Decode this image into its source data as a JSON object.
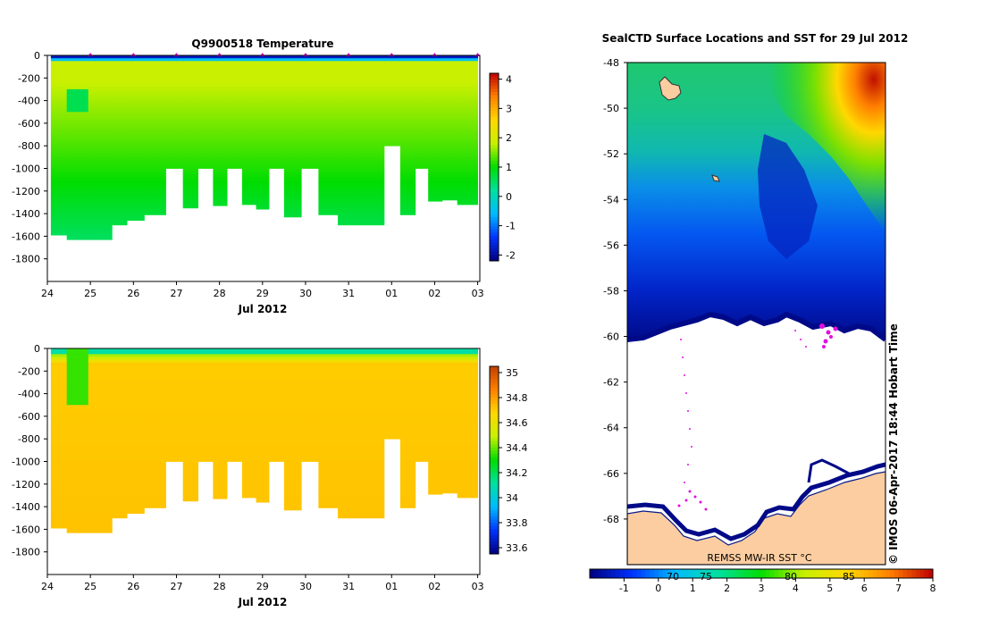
{
  "chart_data": [
    {
      "type": "heatmap",
      "title": "Q9900518  Temperature",
      "xlabel": "Jul 2012",
      "x_tick_labels": [
        "24",
        "25",
        "26",
        "27",
        "28",
        "29",
        "30",
        "31",
        "01",
        "02",
        "03"
      ],
      "y_tick_labels": [
        "0",
        "-200",
        "-400",
        "-600",
        "-800",
        "-1000",
        "-1200",
        "-1400",
        "-1600",
        "-1800"
      ],
      "ylim": [
        -2000,
        0
      ],
      "colorbar_ticks": [
        "4",
        "3",
        "2",
        "1",
        "0",
        "-1",
        "-2"
      ],
      "colorbar_range": [
        -2.2,
        4.2
      ],
      "colormap": [
        "#00007f",
        "#0033ff",
        "#00bbff",
        "#00e0a0",
        "#00dd00",
        "#c8f000",
        "#ffd800",
        "#ff8000",
        "#c00000"
      ],
      "profile_days": [
        0.3,
        0.6,
        1.3,
        1.7,
        2.0,
        2.5,
        3.0,
        3.3,
        3.7,
        4.0,
        4.35,
        4.7,
        5.0,
        5.3,
        5.7,
        6.1,
        6.5,
        7.0,
        7.3,
        7.65,
        8.0,
        8.4,
        8.7,
        9.0,
        9.35,
        9.7
      ],
      "profile_max_depth": [
        1590,
        1630,
        1630,
        1500,
        1460,
        1410,
        1000,
        1350,
        1000,
        1330,
        1000,
        1320,
        1360,
        1000,
        1430,
        1000,
        1410,
        1500,
        1500,
        1500,
        800,
        1410,
        1000,
        1290,
        1280,
        1320
      ],
      "values": {
        "mixed_layer_top": -1.8,
        "surface_layer": -0.5,
        "core_water": 1.8,
        "deep_water": 0.6
      }
    },
    {
      "type": "heatmap",
      "title": "",
      "xlabel": "Jul 2012",
      "x_tick_labels": [
        "24",
        "25",
        "26",
        "27",
        "28",
        "29",
        "30",
        "31",
        "01",
        "02",
        "03"
      ],
      "y_tick_labels": [
        "0",
        "-200",
        "-400",
        "-600",
        "-800",
        "-1000",
        "-1200",
        "-1400",
        "-1600",
        "-1800"
      ],
      "ylim": [
        -2000,
        0
      ],
      "colorbar_ticks": [
        "35",
        "34.8",
        "34.6",
        "34.4",
        "34.2",
        "34",
        "33.8",
        "33.6"
      ],
      "colorbar_range": [
        33.55,
        35.05
      ],
      "colormap": [
        "#00007f",
        "#0033ff",
        "#00bbff",
        "#00e0a0",
        "#00dd00",
        "#c8f000",
        "#ffd800",
        "#ff8000",
        "#c04000"
      ],
      "values": {
        "surface_layer": 34.1,
        "upper": 34.7,
        "deep": 34.72
      }
    },
    {
      "type": "heatmap",
      "title": "SealCTD Surface Locations and SST for 29 Jul 2012",
      "y_tick_labels": [
        "-48",
        "-50",
        "-52",
        "-54",
        "-56",
        "-58",
        "-60",
        "-62",
        "-64",
        "-66",
        "-68"
      ],
      "ylim": [
        -70,
        -48
      ],
      "colorbar_ticks": [
        "-1",
        "0",
        "1",
        "2",
        "3",
        "4",
        "5",
        "6",
        "7",
        "8"
      ],
      "colorbar_range": [
        -2,
        8
      ],
      "colorbar_top_labels": [
        "70",
        "75",
        "80",
        "85"
      ],
      "colormap": [
        "#00007f",
        "#0033ff",
        "#00bbff",
        "#00e0a0",
        "#00dd00",
        "#c8f000",
        "#ffd800",
        "#ff8000",
        "#c00000"
      ],
      "map_overlay_label": "REMSS MW-IR SST °C",
      "side_caption": "© IMOS 06-Apr-2017 18:44 Hobart Time"
    }
  ]
}
